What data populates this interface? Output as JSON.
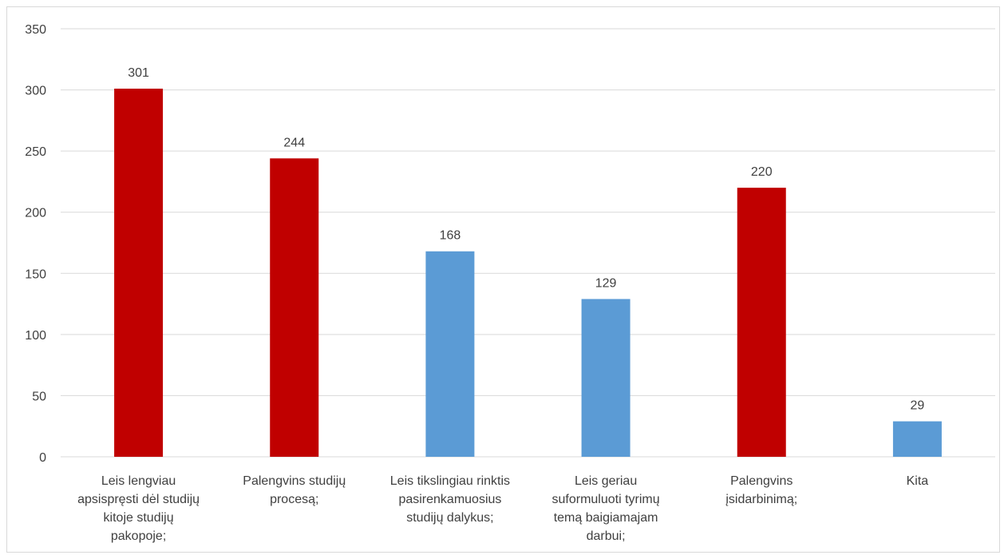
{
  "chart_data": {
    "type": "bar",
    "categories": [
      [
        "Leis lengviau",
        "apsispręsti dėl studijų",
        "kitoje studijų",
        "pakopoje;"
      ],
      [
        "Palengvins studijų",
        "procesą;"
      ],
      [
        "Leis tikslingiau rinktis",
        "pasirenkamuosius",
        "studijų dalykus;"
      ],
      [
        "Leis geriau",
        "suformuluoti tyrimų",
        "temą baigiamajam",
        "darbui;"
      ],
      [
        "Palengvins",
        "įsidarbinimą;"
      ],
      [
        "Kita"
      ]
    ],
    "values": [
      301,
      244,
      168,
      129,
      220,
      29
    ],
    "bar_colors": [
      "#c00000",
      "#c00000",
      "#5b9bd5",
      "#5b9bd5",
      "#c00000",
      "#5b9bd5"
    ],
    "ylim": [
      0,
      350
    ],
    "yticks": [
      0,
      50,
      100,
      150,
      200,
      250,
      300,
      350
    ],
    "grid": true,
    "title": "",
    "xlabel": "",
    "ylabel": ""
  },
  "colors": {
    "gridline": "#d9d9d9",
    "axis_text": "#404040"
  }
}
